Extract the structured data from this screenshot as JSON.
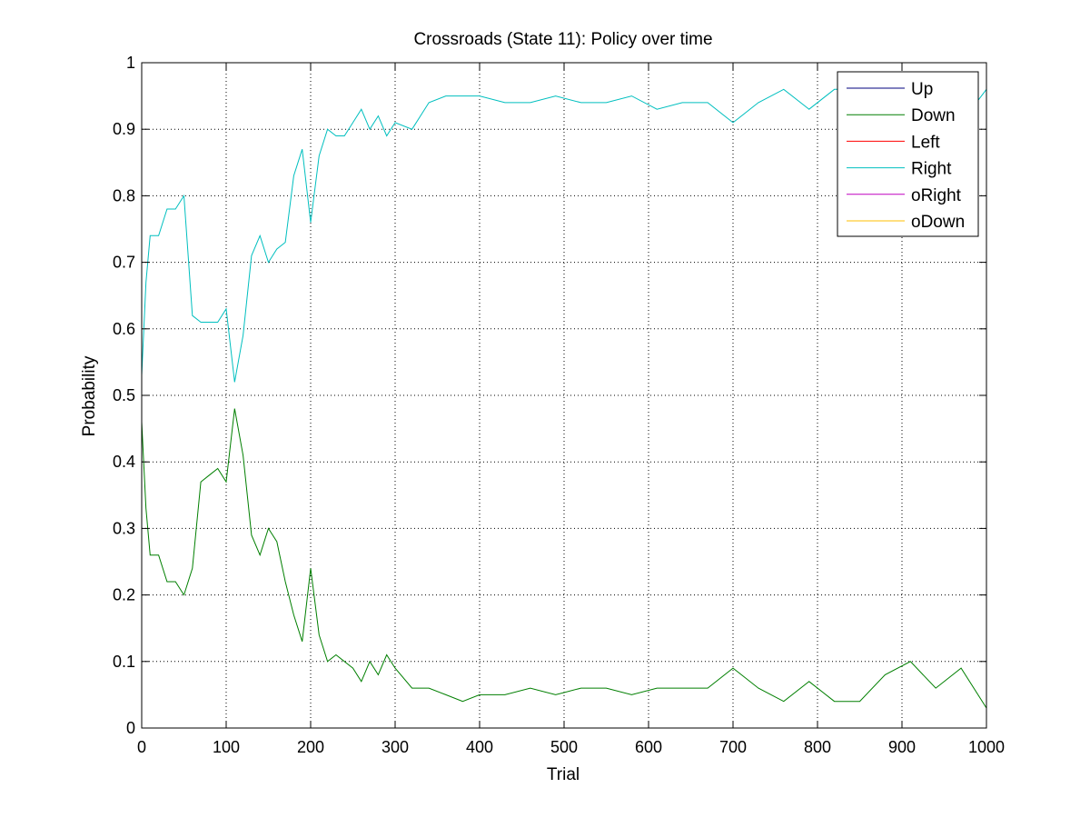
{
  "chart_data": {
    "type": "line",
    "title": "Crossroads (State 11): Policy over time",
    "xlabel": "Trial",
    "ylabel": "Probability",
    "xlim": [
      0,
      1000
    ],
    "ylim": [
      0,
      1
    ],
    "xticks": [
      0,
      100,
      200,
      300,
      400,
      500,
      600,
      700,
      800,
      900,
      1000
    ],
    "yticks": [
      0,
      0.1,
      0.2,
      0.3,
      0.4,
      0.5,
      0.6,
      0.7,
      0.8,
      0.9,
      1
    ],
    "grid": true,
    "legend_position": "top-right",
    "series": [
      {
        "name": "Up",
        "color": "#00007f",
        "x": [
          0,
          1000
        ],
        "values": [
          0,
          0
        ]
      },
      {
        "name": "Down",
        "color": "#007f00",
        "x": [
          0,
          5,
          10,
          20,
          30,
          40,
          50,
          60,
          70,
          80,
          90,
          100,
          110,
          120,
          130,
          140,
          150,
          160,
          170,
          180,
          190,
          200,
          210,
          220,
          230,
          240,
          250,
          260,
          270,
          280,
          290,
          300,
          320,
          340,
          360,
          380,
          400,
          430,
          460,
          490,
          520,
          550,
          580,
          610,
          640,
          670,
          700,
          730,
          760,
          790,
          820,
          850,
          880,
          910,
          940,
          970,
          1000
        ],
        "values": [
          0.46,
          0.33,
          0.26,
          0.26,
          0.22,
          0.22,
          0.2,
          0.24,
          0.37,
          0.38,
          0.39,
          0.37,
          0.48,
          0.41,
          0.29,
          0.26,
          0.3,
          0.28,
          0.22,
          0.17,
          0.13,
          0.24,
          0.14,
          0.1,
          0.11,
          0.1,
          0.09,
          0.07,
          0.1,
          0.08,
          0.11,
          0.09,
          0.06,
          0.06,
          0.05,
          0.04,
          0.05,
          0.05,
          0.06,
          0.05,
          0.06,
          0.06,
          0.05,
          0.06,
          0.06,
          0.06,
          0.09,
          0.06,
          0.04,
          0.07,
          0.04,
          0.04,
          0.08,
          0.1,
          0.06,
          0.09,
          0.03
        ]
      },
      {
        "name": "Left",
        "color": "#ff0000",
        "x": [
          0,
          1000
        ],
        "values": [
          0,
          0
        ]
      },
      {
        "name": "Right",
        "color": "#00bfbf",
        "x": [
          0,
          5,
          10,
          20,
          30,
          40,
          50,
          60,
          70,
          80,
          90,
          100,
          110,
          120,
          130,
          140,
          150,
          160,
          170,
          180,
          190,
          200,
          210,
          220,
          230,
          240,
          250,
          260,
          270,
          280,
          290,
          300,
          320,
          340,
          360,
          380,
          400,
          430,
          460,
          490,
          520,
          550,
          580,
          610,
          640,
          670,
          700,
          730,
          760,
          790,
          820,
          850,
          880,
          910,
          940,
          970,
          1000
        ],
        "values": [
          0.53,
          0.67,
          0.74,
          0.74,
          0.78,
          0.78,
          0.8,
          0.62,
          0.61,
          0.61,
          0.61,
          0.63,
          0.52,
          0.59,
          0.71,
          0.74,
          0.7,
          0.72,
          0.73,
          0.83,
          0.87,
          0.76,
          0.86,
          0.9,
          0.89,
          0.89,
          0.91,
          0.93,
          0.9,
          0.92,
          0.89,
          0.91,
          0.9,
          0.94,
          0.95,
          0.95,
          0.95,
          0.94,
          0.94,
          0.95,
          0.94,
          0.94,
          0.95,
          0.93,
          0.94,
          0.94,
          0.91,
          0.94,
          0.96,
          0.93,
          0.96,
          0.96,
          0.92,
          0.9,
          0.94,
          0.91,
          0.96
        ]
      },
      {
        "name": "oRight",
        "color": "#bf00bf",
        "x": [
          0,
          1000
        ],
        "values": [
          0,
          0
        ]
      },
      {
        "name": "oDown",
        "color": "#ffbf00",
        "x": [
          0,
          1000
        ],
        "values": [
          0,
          0
        ]
      }
    ]
  }
}
